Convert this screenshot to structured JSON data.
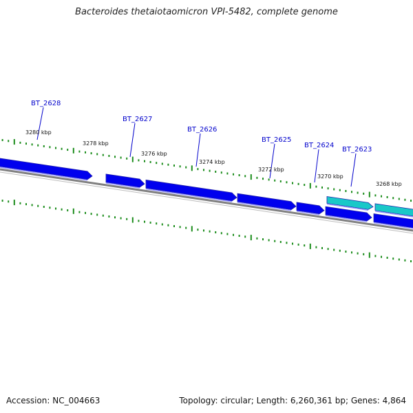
{
  "title": "Bacteroides thetaiotaomicron VPI-5482, complete genome",
  "footer": {
    "accession": "Accession: NC_004663",
    "summary": "Topology: circular; Length: 6,260,361 bp; Genes: 4,864"
  },
  "colors": {
    "gene_forward": "#0000ee",
    "gene_highlight": "#19c8c8",
    "tick": "#1a8c1a",
    "backbone": "#808080",
    "label": "#0000cc"
  },
  "scale": {
    "unit": "kbp",
    "tick_labels": [
      "3280 kbp",
      "3278 kbp",
      "3276 kbp",
      "3274 kbp",
      "3272 kbp",
      "3270 kbp",
      "3268 kbp"
    ]
  },
  "genes": [
    {
      "name": "",
      "color": "blue"
    },
    {
      "name": "BT_2628",
      "color": "blue"
    },
    {
      "name": "BT_2627",
      "color": "blue"
    },
    {
      "name": "BT_2626",
      "color": "blue"
    },
    {
      "name": "BT_2625",
      "color": "blue"
    },
    {
      "name": "BT_2624",
      "color": "blue"
    },
    {
      "name": "BT_2623",
      "color": "cyan"
    },
    {
      "name": "",
      "color": "cyan"
    },
    {
      "name": "",
      "color": "blue"
    }
  ]
}
